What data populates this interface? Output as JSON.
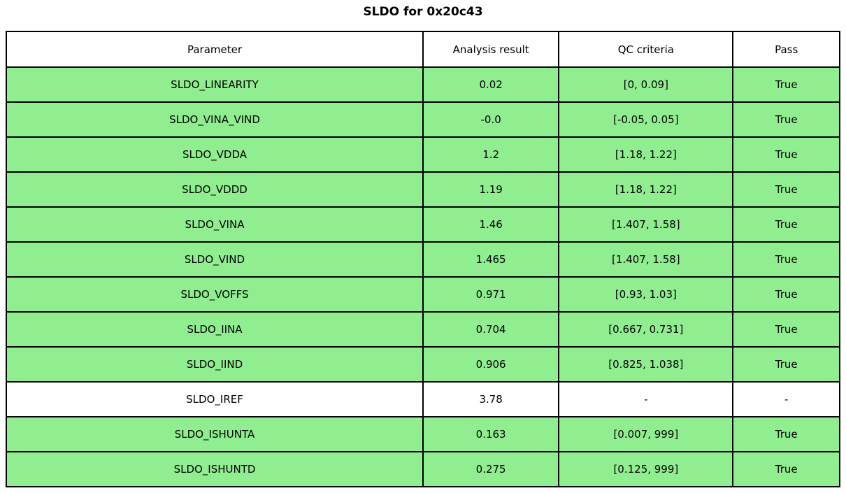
{
  "title": "SLDO for 0x20c43",
  "chart_data": {
    "type": "table",
    "title": "SLDO for 0x20c43",
    "columns": [
      "Parameter",
      "Analysis result",
      "QC criteria",
      "Pass"
    ],
    "rows": [
      {
        "parameter": "SLDO_LINEARITY",
        "analysis_result": "0.02",
        "qc_criteria": "[0, 0.09]",
        "pass": "True",
        "row_color": "#90ee90"
      },
      {
        "parameter": "SLDO_VINA_VIND",
        "analysis_result": "-0.0",
        "qc_criteria": "[-0.05, 0.05]",
        "pass": "True",
        "row_color": "#90ee90"
      },
      {
        "parameter": "SLDO_VDDA",
        "analysis_result": "1.2",
        "qc_criteria": "[1.18, 1.22]",
        "pass": "True",
        "row_color": "#90ee90"
      },
      {
        "parameter": "SLDO_VDDD",
        "analysis_result": "1.19",
        "qc_criteria": "[1.18, 1.22]",
        "pass": "True",
        "row_color": "#90ee90"
      },
      {
        "parameter": "SLDO_VINA",
        "analysis_result": "1.46",
        "qc_criteria": "[1.407, 1.58]",
        "pass": "True",
        "row_color": "#90ee90"
      },
      {
        "parameter": "SLDO_VIND",
        "analysis_result": "1.465",
        "qc_criteria": "[1.407, 1.58]",
        "pass": "True",
        "row_color": "#90ee90"
      },
      {
        "parameter": "SLDO_VOFFS",
        "analysis_result": "0.971",
        "qc_criteria": "[0.93, 1.03]",
        "pass": "True",
        "row_color": "#90ee90"
      },
      {
        "parameter": "SLDO_IINA",
        "analysis_result": "0.704",
        "qc_criteria": "[0.667, 0.731]",
        "pass": "True",
        "row_color": "#90ee90"
      },
      {
        "parameter": "SLDO_IIND",
        "analysis_result": "0.906",
        "qc_criteria": "[0.825, 1.038]",
        "pass": "True",
        "row_color": "#90ee90"
      },
      {
        "parameter": "SLDO_IREF",
        "analysis_result": "3.78",
        "qc_criteria": "-",
        "pass": "-",
        "row_color": "#ffffff"
      },
      {
        "parameter": "SLDO_ISHUNTA",
        "analysis_result": "0.163",
        "qc_criteria": "[0.007, 999]",
        "pass": "True",
        "row_color": "#90ee90"
      },
      {
        "parameter": "SLDO_ISHUNTD",
        "analysis_result": "0.275",
        "qc_criteria": "[0.125, 999]",
        "pass": "True",
        "row_color": "#90ee90"
      }
    ],
    "layout": {
      "header_bg": "#ffffff",
      "pass_row_bg": "#90ee90",
      "border_color": "#000000",
      "title_position": "top-center"
    }
  }
}
